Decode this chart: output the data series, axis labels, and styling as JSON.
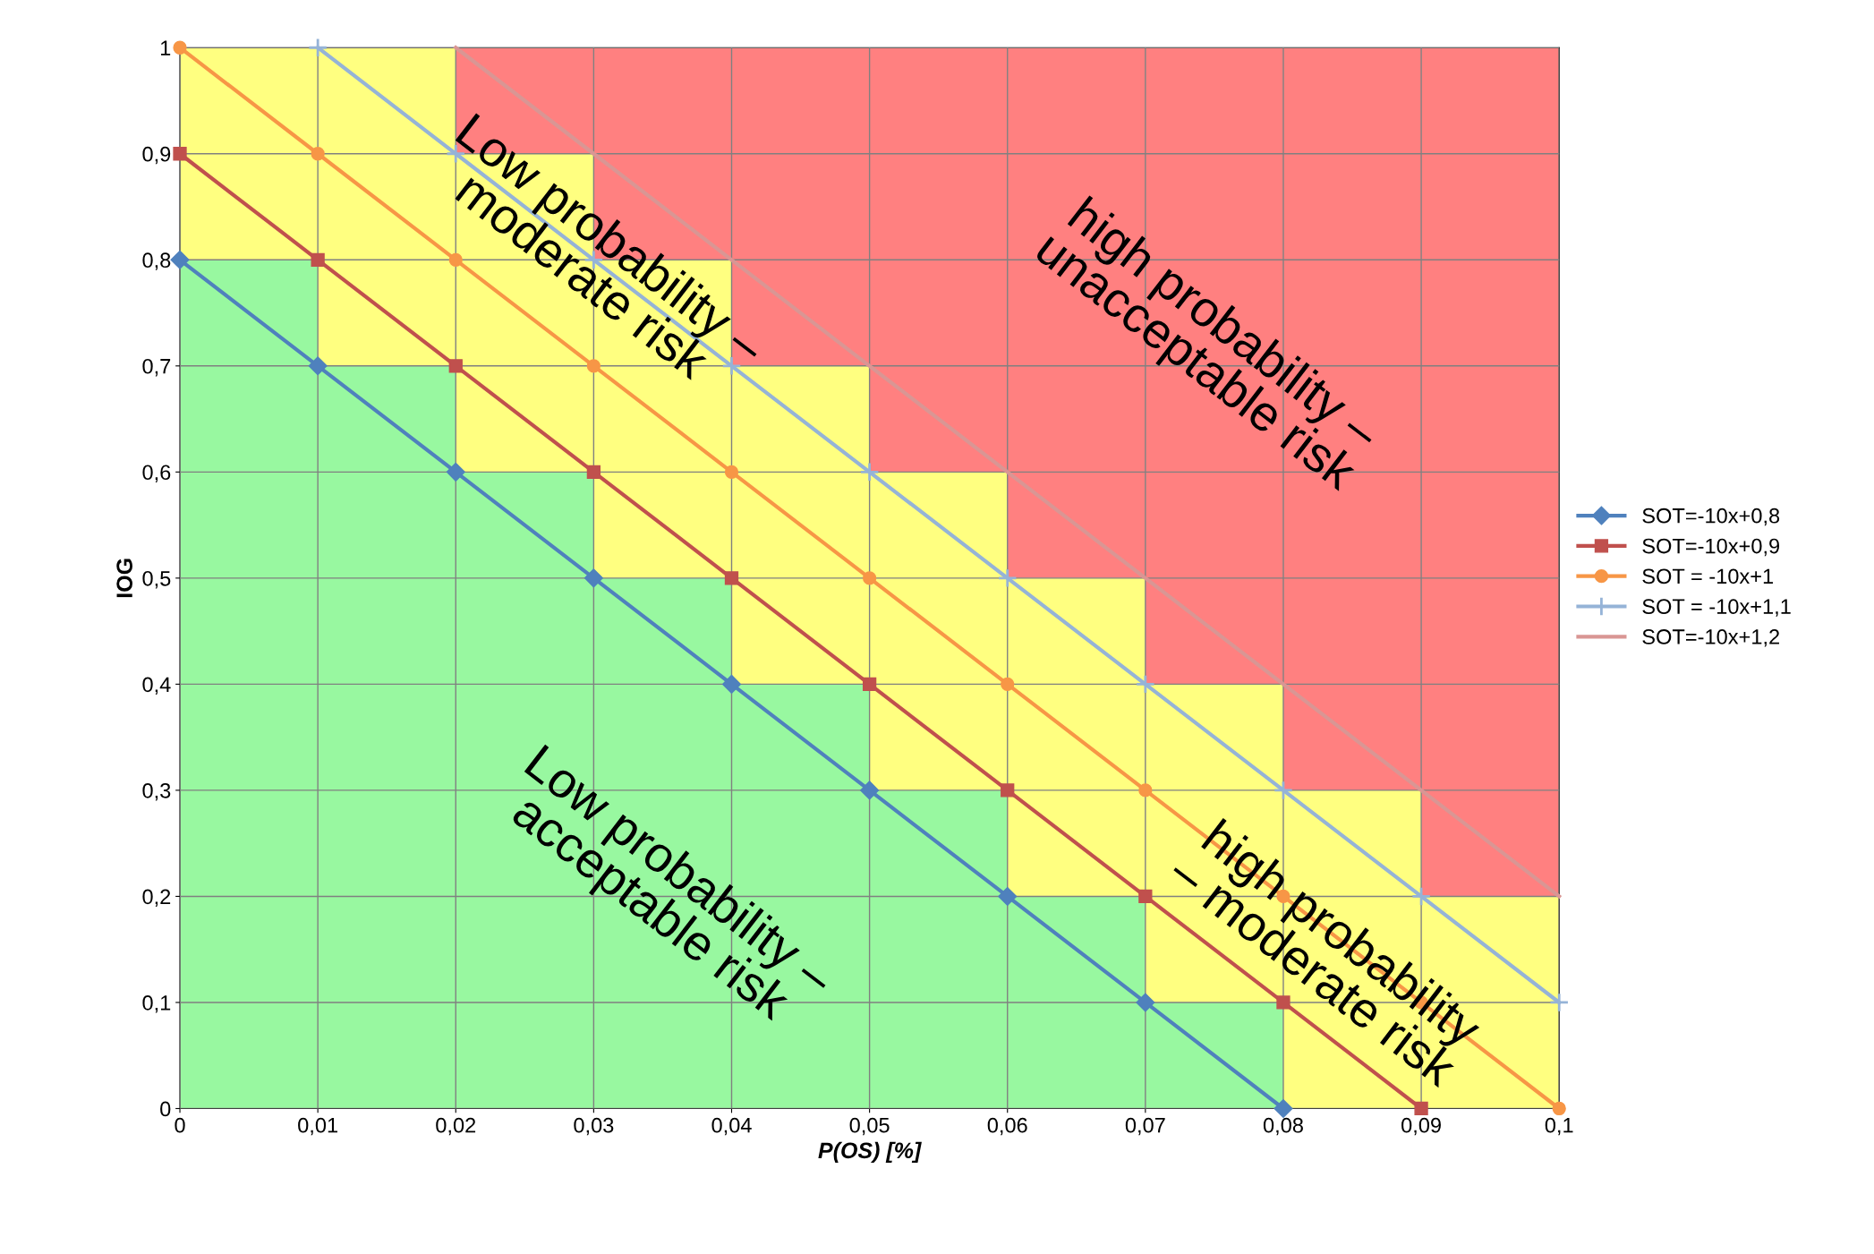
{
  "chart_data": {
    "type": "line",
    "xlabel": "P(OS) [%]",
    "ylabel": "IOG",
    "xlim": [
      0,
      0.1
    ],
    "ylim": [
      0,
      1
    ],
    "xticks": [
      0,
      {
        "value": 0.01,
        "label": "0,01"
      },
      {
        "value": 0.02,
        "label": "0,02"
      },
      {
        "value": 0.03,
        "label": "0,03"
      },
      {
        "value": 0.04,
        "label": "0,04"
      },
      {
        "value": 0.05,
        "label": "0,05"
      },
      {
        "value": 0.06,
        "label": "0,06"
      },
      {
        "value": 0.07,
        "label": "0,07"
      },
      {
        "value": 0.08,
        "label": "0,08"
      },
      {
        "value": 0.09,
        "label": "0,09"
      },
      {
        "value": 0.1,
        "label": "0,1"
      }
    ],
    "yticks": [
      0,
      {
        "value": 0.1,
        "label": "0,1"
      },
      {
        "value": 0.2,
        "label": "0,2"
      },
      {
        "value": 0.3,
        "label": "0,3"
      },
      {
        "value": 0.4,
        "label": "0,4"
      },
      {
        "value": 0.5,
        "label": "0,5"
      },
      {
        "value": 0.6,
        "label": "0,6"
      },
      {
        "value": 0.7,
        "label": "0,7"
      },
      {
        "value": 0.8,
        "label": "0,8"
      },
      {
        "value": 0.9,
        "label": "0,9"
      },
      1
    ],
    "grid": true,
    "legend": "right",
    "stacked": true,
    "series": [
      {
        "type": "bar",
        "color": "#98f8a0",
        "x": [
          0.005,
          0.015,
          0.025,
          0.035,
          0.045,
          0.055,
          0.065,
          0.075,
          0.085,
          0.095
        ],
        "values": [
          0.8,
          0.7,
          0.6,
          0.5,
          0.4,
          0.3,
          0.2,
          0.1,
          0,
          0
        ]
      },
      {
        "type": "bar",
        "color": "#ffff80",
        "x": [
          0.005,
          0.015,
          0.025,
          0.035,
          0.045,
          0.055,
          0.065,
          0.075,
          0.085,
          0.095
        ],
        "values": [
          0.2,
          0.3,
          0.3,
          0.3,
          0.3,
          0.3,
          0.3,
          0.3,
          0.3,
          0.2
        ]
      },
      {
        "type": "bar",
        "color": "#ff8080",
        "x": [
          0.005,
          0.015,
          0.025,
          0.035,
          0.045,
          0.055,
          0.065,
          0.075,
          0.085,
          0.095
        ],
        "values": [
          0,
          0,
          0.1,
          0.2,
          0.3,
          0.4,
          0.5,
          0.6,
          0.7,
          0.8
        ]
      },
      {
        "name": "SOT=-10x+0,8",
        "color": "#4f81bd",
        "marker": "diamond",
        "x": [
          0,
          0.01,
          0.02,
          0.03,
          0.04,
          0.05,
          0.06,
          0.07,
          0.08
        ],
        "values": [
          0.8,
          0.7,
          0.6,
          0.5,
          0.4,
          0.3,
          0.2,
          0.1,
          0
        ]
      },
      {
        "name": "SOT=-10x+0,9",
        "color": "#c0504d",
        "marker": "square",
        "x": [
          0,
          0.01,
          0.02,
          0.03,
          0.04,
          0.05,
          0.06,
          0.07,
          0.08,
          0.09
        ],
        "values": [
          0.9,
          0.8,
          0.7,
          0.6,
          0.5,
          0.4,
          0.3,
          0.2,
          0.1,
          0
        ]
      },
      {
        "name": "SOT = -10x+1",
        "color": "#f79646",
        "marker": "circle",
        "x": [
          0,
          0.01,
          0.02,
          0.03,
          0.04,
          0.05,
          0.06,
          0.07,
          0.08,
          0.09,
          0.1
        ],
        "values": [
          1,
          0.9,
          0.8,
          0.7,
          0.6,
          0.5,
          0.4,
          0.3,
          0.2,
          0.1,
          0
        ]
      },
      {
        "name": "SOT = -10x+1,1",
        "color": "#95b3d7",
        "marker": "cross",
        "x": [
          0.01,
          0.02,
          0.03,
          0.04,
          0.05,
          0.06,
          0.07,
          0.08,
          0.09,
          0.1
        ],
        "values": [
          1,
          0.9,
          0.8,
          0.7,
          0.6,
          0.5,
          0.4,
          0.3,
          0.2,
          0.1
        ]
      },
      {
        "name": "SOT=-10x+1,2",
        "color": "#d99694",
        "marker": "none",
        "x": [
          0.02,
          0.03,
          0.04,
          0.05,
          0.06,
          0.07,
          0.08,
          0.09,
          0.1
        ],
        "values": [
          1,
          0.9,
          0.8,
          0.7,
          0.6,
          0.5,
          0.4,
          0.3,
          0.2
        ]
      }
    ],
    "annotations": [
      "Low probability –\nmoderate risk",
      "high probability –\nunacceptable risk",
      "Low probability –\nacceptable risk",
      "high probability\n– moderate risk"
    ]
  }
}
